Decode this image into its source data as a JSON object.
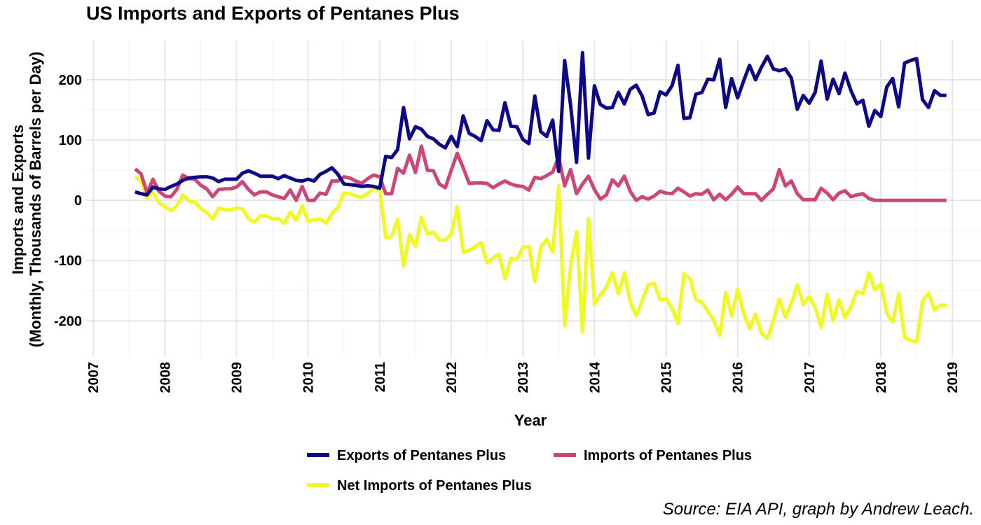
{
  "chart_data": {
    "type": "line",
    "title": "US Imports and Exports of Pentanes Plus",
    "xlabel": "Year",
    "ylabel": [
      "Imports and Exports",
      "(Monthly, Thousands of Barrels per Day)"
    ],
    "xlim": [
      2006.9,
      2019.4
    ],
    "ylim": [
      -260,
      265
    ],
    "x_ticks": [
      2007,
      2008,
      2009,
      2010,
      2011,
      2012,
      2013,
      2014,
      2015,
      2016,
      2017,
      2018,
      2019
    ],
    "y_ticks": [
      -200,
      -100,
      0,
      100,
      200
    ],
    "grid": true,
    "legend_position": "bottom",
    "source": "Source: EIA API, graph by Andrew Leach.",
    "series": [
      {
        "name": "Exports of Pentanes Plus",
        "color": "#0d0887",
        "start": "2007-08",
        "values": [
          14,
          11,
          9,
          22,
          19,
          18,
          23,
          27,
          33,
          37,
          38,
          39,
          39,
          37,
          31,
          35,
          35,
          35,
          45,
          49,
          45,
          40,
          40,
          40,
          36,
          41,
          37,
          33,
          32,
          35,
          32,
          43,
          48,
          54,
          43,
          27,
          26,
          25,
          23,
          24,
          23,
          20,
          73,
          71,
          84,
          154,
          102,
          122,
          118,
          106,
          102,
          93,
          87,
          106,
          89,
          140,
          111,
          106,
          99,
          132,
          117,
          116,
          162,
          123,
          122,
          101,
          94,
          173,
          114,
          106,
          133,
          48,
          232,
          158,
          63,
          245,
          70,
          190,
          159,
          153,
          154,
          179,
          160,
          184,
          191,
          173,
          142,
          145,
          180,
          175,
          190,
          224,
          136,
          137,
          176,
          179,
          201,
          200,
          234,
          154,
          202,
          170,
          198,
          224,
          200,
          221,
          239,
          218,
          215,
          218,
          203,
          151,
          174,
          161,
          179,
          231,
          168,
          201,
          177,
          211,
          182,
          160,
          166,
          123,
          149,
          139,
          188,
          202,
          155,
          228,
          232,
          235,
          167,
          154,
          182,
          174,
          174
        ]
      },
      {
        "name": "Imports of Pentanes Plus",
        "color": "#cc4778",
        "start": "2007-08",
        "values": [
          52,
          44,
          13,
          35,
          15,
          7,
          6,
          18,
          42,
          36,
          35,
          25,
          19,
          6,
          18,
          19,
          19,
          22,
          31,
          18,
          9,
          14,
          14,
          9,
          6,
          3,
          17,
          0,
          23,
          0,
          0,
          12,
          10,
          32,
          32,
          39,
          37,
          32,
          28,
          36,
          42,
          39,
          11,
          11,
          53,
          45,
          75,
          46,
          90,
          50,
          49,
          27,
          21,
          50,
          78,
          54,
          28,
          29,
          29,
          28,
          21,
          27,
          32,
          27,
          24,
          23,
          17,
          38,
          36,
          41,
          47,
          72,
          24,
          51,
          11,
          27,
          40,
          18,
          2,
          9,
          34,
          24,
          40,
          15,
          0,
          6,
          2,
          7,
          15,
          12,
          11,
          20,
          14,
          7,
          11,
          10,
          17,
          1,
          10,
          1,
          10,
          22,
          11,
          11,
          11,
          0,
          10,
          19,
          51,
          24,
          32,
          11,
          1,
          1,
          1,
          20,
          12,
          1,
          12,
          16,
          6,
          9,
          11,
          3,
          0,
          0,
          0,
          0,
          0,
          0,
          0,
          0,
          0,
          0,
          0,
          0,
          0
        ]
      },
      {
        "name": "Net Imports of Pentanes Plus",
        "color": "#f0f921",
        "start": "2007-08",
        "values": [
          38,
          33,
          4,
          13,
          -4,
          -11,
          -17,
          -9,
          9,
          -1,
          -3,
          -14,
          -20,
          -31,
          -13,
          -16,
          -16,
          -13,
          -14,
          -31,
          -36,
          -26,
          -26,
          -31,
          -30,
          -38,
          -20,
          -33,
          -9,
          -35,
          -32,
          -31,
          -38,
          -22,
          -11,
          12,
          11,
          7,
          5,
          12,
          19,
          19,
          -62,
          -60,
          -31,
          -109,
          -57,
          -76,
          -28,
          -56,
          -53,
          -66,
          -66,
          -56,
          -11,
          -86,
          -83,
          -77,
          -70,
          -104,
          -96,
          -89,
          -130,
          -96,
          -98,
          -78,
          -77,
          -135,
          -78,
          -65,
          -86,
          24,
          -208,
          -107,
          -52,
          -218,
          -30,
          -172,
          -157,
          -144,
          -120,
          -155,
          -120,
          -169,
          -191,
          -167,
          -140,
          -138,
          -165,
          -163,
          -179,
          -204,
          -122,
          -130,
          -165,
          -169,
          -184,
          -199,
          -224,
          -153,
          -192,
          -148,
          -187,
          -213,
          -189,
          -221,
          -229,
          -199,
          -164,
          -194,
          -171,
          -140,
          -173,
          -160,
          -178,
          -211,
          -156,
          -200,
          -165,
          -195,
          -176,
          -151,
          -155,
          -120,
          -149,
          -139,
          -188,
          -202,
          -155,
          -228,
          -232,
          -235,
          -167,
          -154,
          -182,
          -174,
          -174
        ]
      }
    ]
  }
}
